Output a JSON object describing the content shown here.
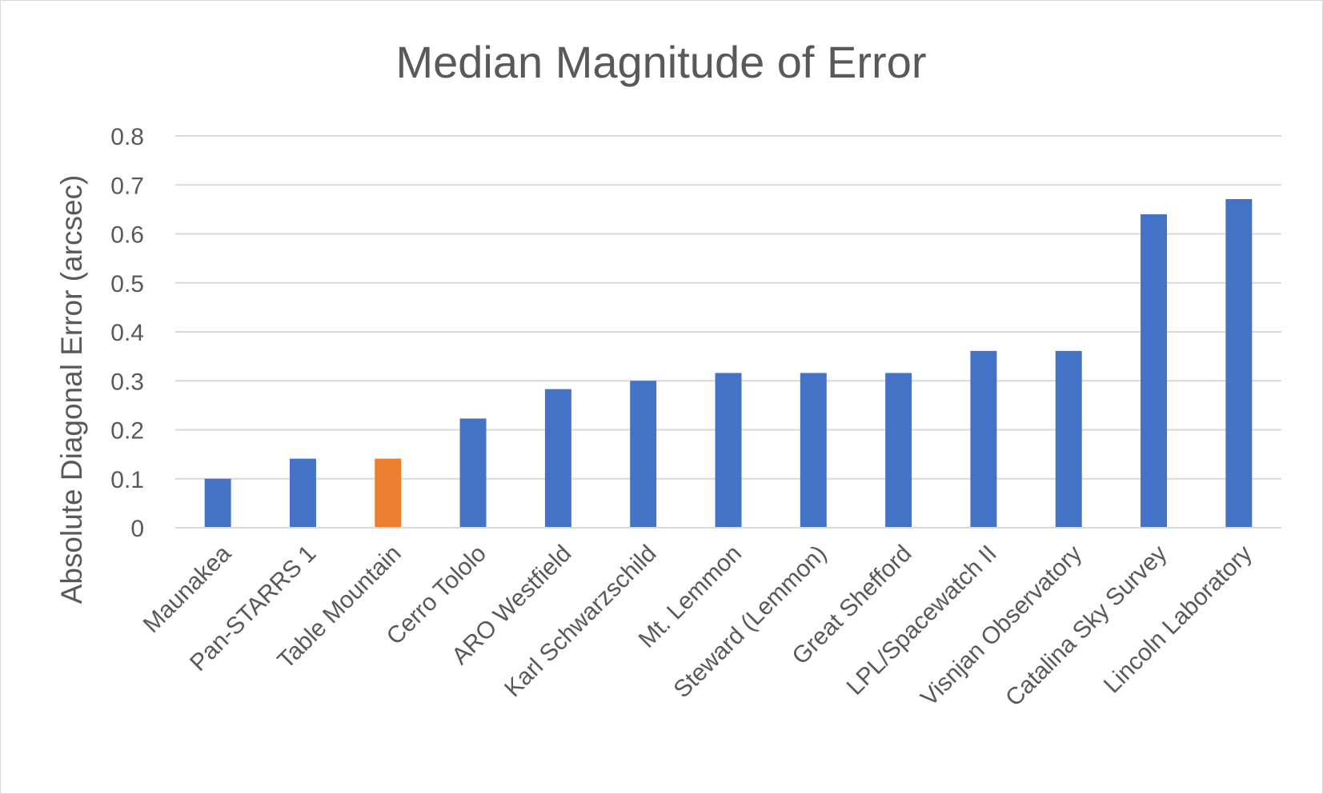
{
  "chart_data": {
    "type": "bar",
    "title": "Median Magnitude of Error",
    "xlabel": "",
    "ylabel": "Absolute Diagonal Error (arcsec)",
    "ylim": [
      0,
      0.8
    ],
    "yticks": [
      "0",
      "0.1",
      "0.2",
      "0.3",
      "0.4",
      "0.5",
      "0.6",
      "0.7",
      "0.8"
    ],
    "grid": "horizontal",
    "legend": "none",
    "categories": [
      "Maunakea",
      "Pan-STARRS 1",
      "Table Mountain",
      "Cerro Tololo",
      "ARO Westfield",
      "Karl Schwarzschild",
      "Mt. Lemmon",
      "Steward (Lemmon)",
      "Great Shefford",
      "LPL/Spacewatch II",
      "Visnjan Observatory",
      "Catalina Sky Survey",
      "Lincoln Laboratory"
    ],
    "values": [
      0.1,
      0.141,
      0.141,
      0.223,
      0.283,
      0.3,
      0.316,
      0.316,
      0.316,
      0.361,
      0.361,
      0.64,
      0.671
    ],
    "colors": {
      "default_bar": "#4472C4",
      "highlight_bar": "#ED7D31",
      "gridline": "#d9d9d9",
      "text": "#595959"
    },
    "highlight_category": "Table Mountain"
  }
}
